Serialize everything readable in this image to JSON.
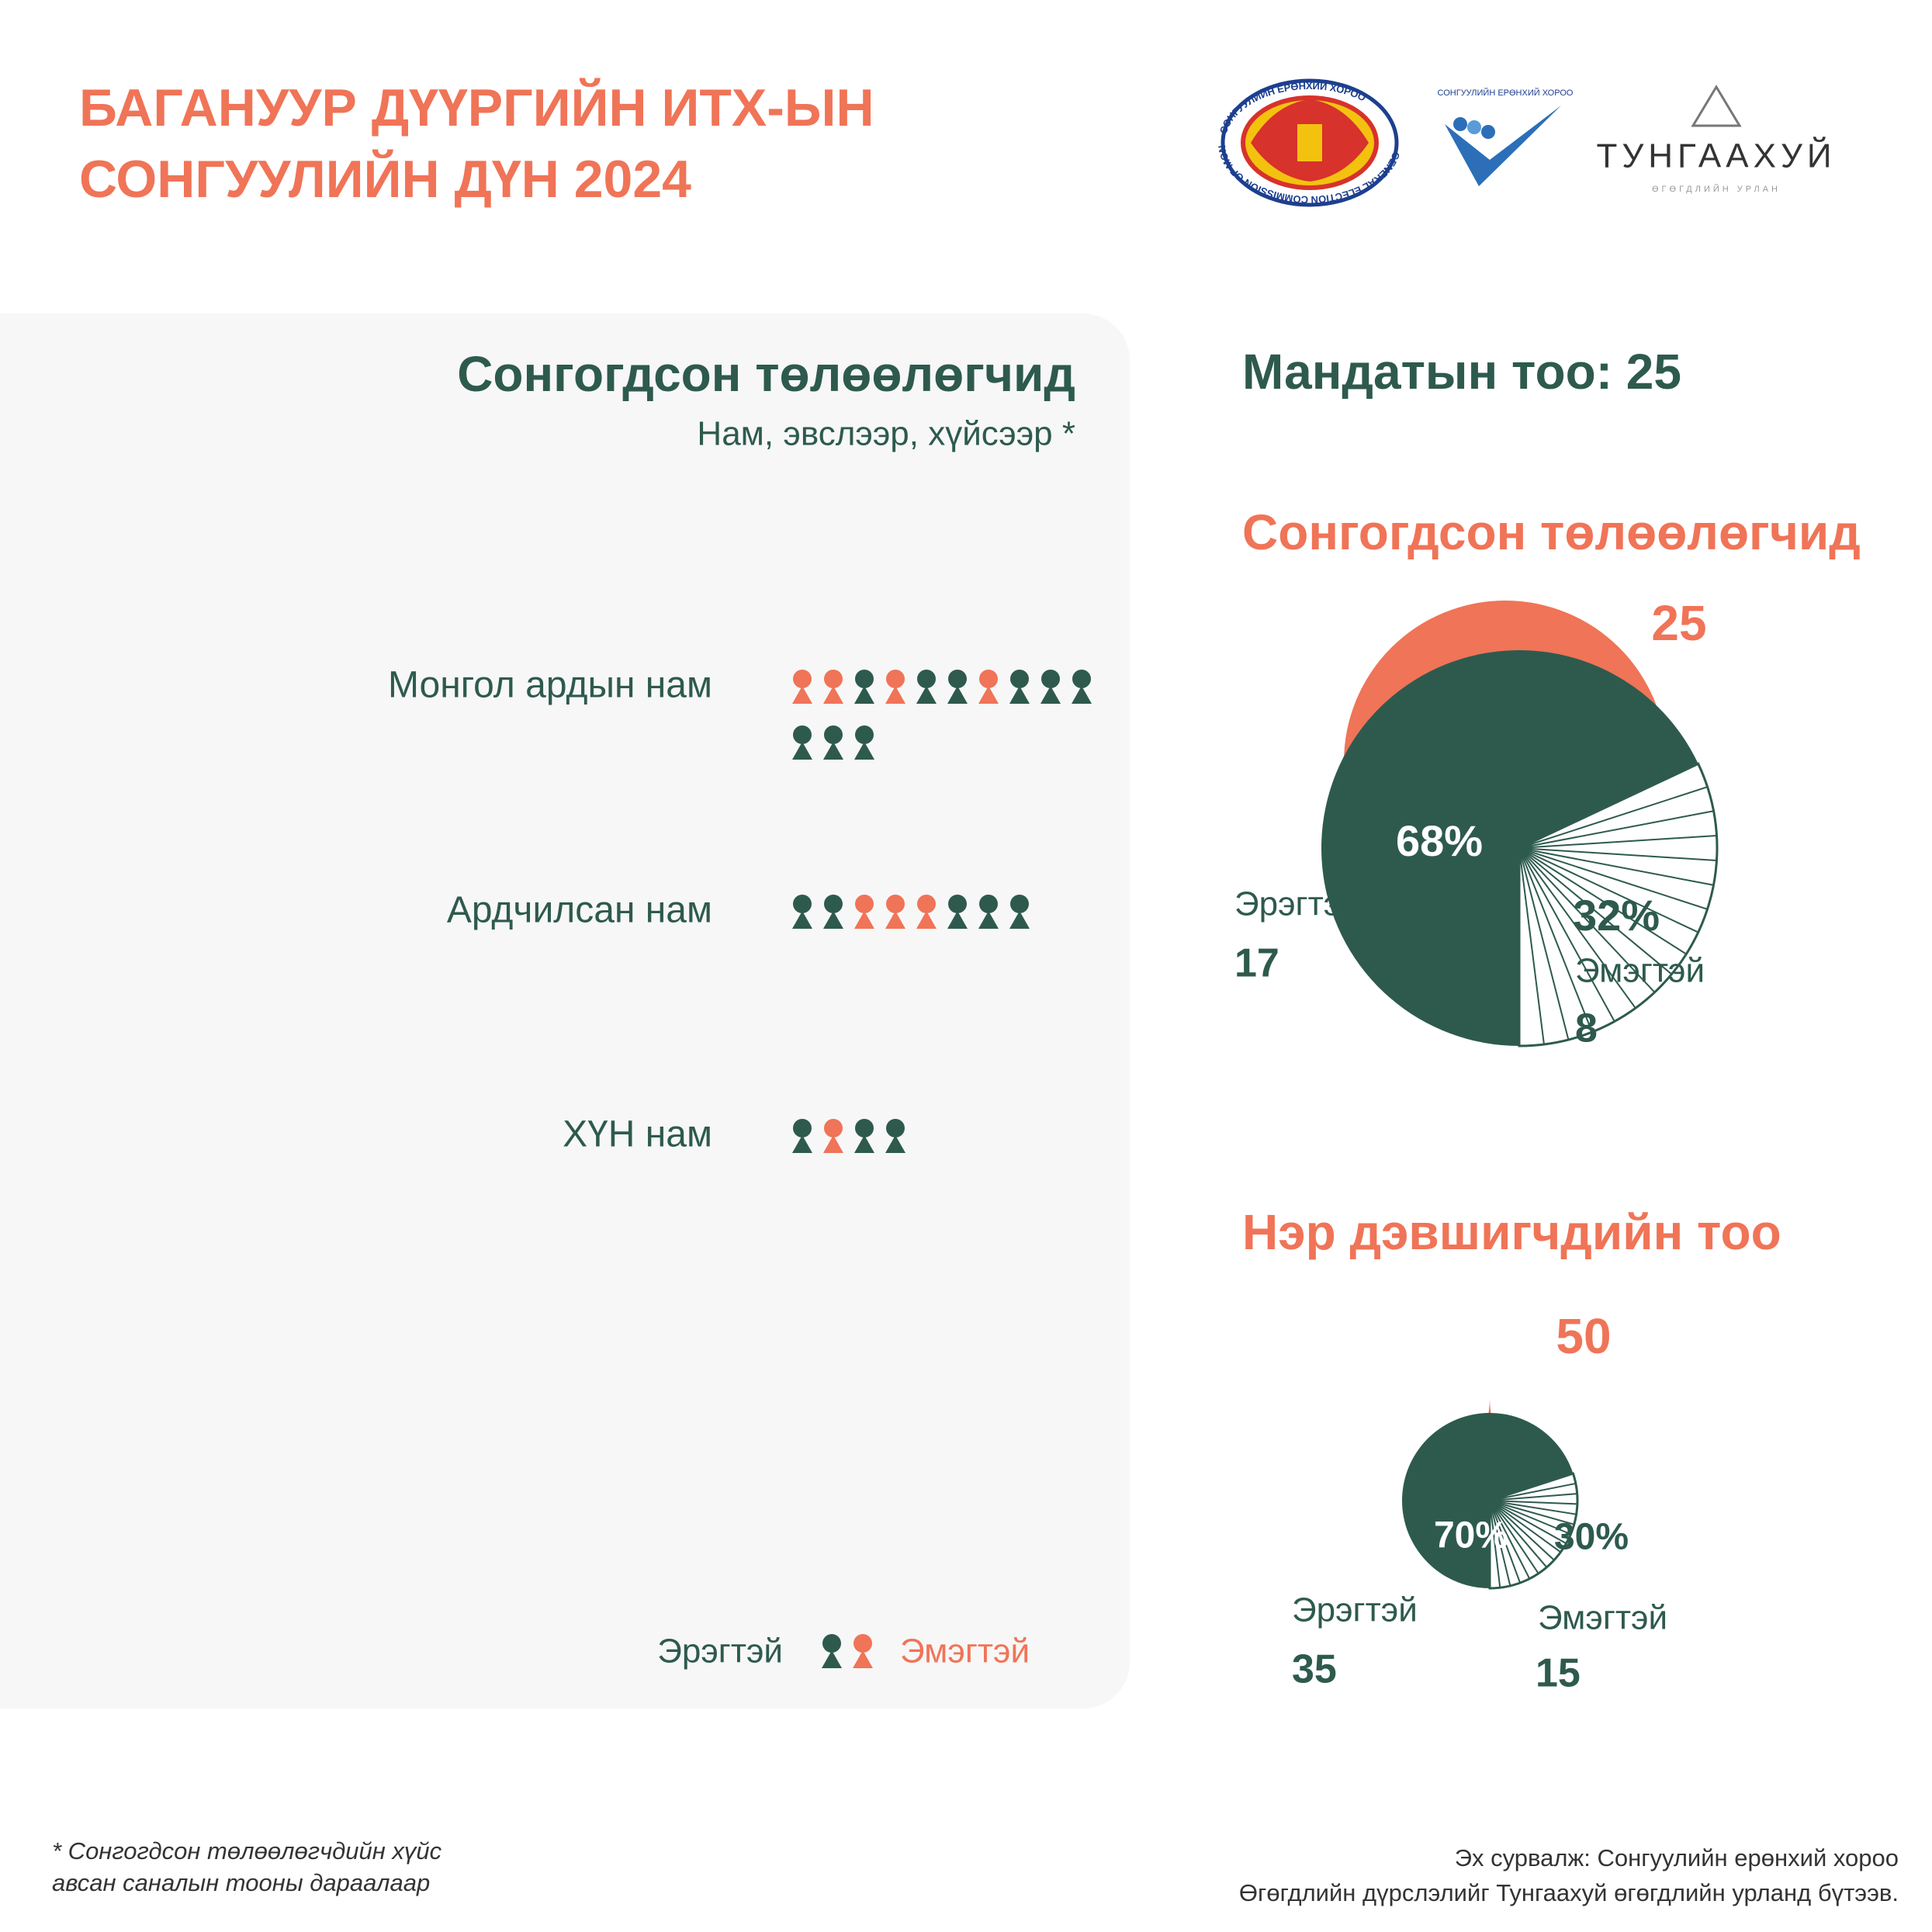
{
  "header": {
    "title_lines": [
      "БАГАНУУР ДҮҮРГИЙН ИТХ-ЫН",
      "СОНГУУЛИЙН ДҮН 2024"
    ]
  },
  "logos": {
    "gec_ring": "СОНГУУЛИЙН ЕРӨНХИЙ ХОРОО",
    "gec_ring_en": "GENERAL ELECTION COMMISSION OF MONGOLIA",
    "check_title": "СОНГУУЛИЙН ЕРӨНХИЙ ХОРОО",
    "brand": "ТУНГААХУЙ",
    "brand_sub": "ӨГӨГДЛИЙН УРЛАН"
  },
  "pictogram": {
    "title": "Сонгогдсон төлөөлөгчид",
    "subtitle": "Нам, эвслээр, хүйсээр *",
    "colors": {
      "male": "#2e5a4e",
      "female": "#f07457"
    },
    "parties": [
      {
        "name": "Монгол ардын нам",
        "members": [
          "female",
          "female",
          "male",
          "female",
          "male",
          "male",
          "female",
          "male",
          "male",
          "male",
          "male",
          "male",
          "male"
        ]
      },
      {
        "name": "Ардчилсан нам",
        "members": [
          "male",
          "male",
          "female",
          "female",
          "female",
          "male",
          "male",
          "male"
        ]
      },
      {
        "name": "ХҮН нам",
        "members": [
          "male",
          "female",
          "male",
          "male"
        ]
      }
    ],
    "legend": {
      "male": "Эрэгтэй",
      "female": "Эмэгтэй"
    }
  },
  "mandates": {
    "label": "Мандатын тоо:",
    "value": 25
  },
  "chart_data": [
    {
      "type": "pie",
      "title": "Сонгогдсон төлөөлөгчид",
      "total": 25,
      "categories": [
        "Эрэгтэй",
        "Эмэгтэй"
      ],
      "values": [
        68,
        32
      ],
      "value_labels": [
        "68%",
        "32%"
      ],
      "counts": [
        17,
        8
      ],
      "colors": [
        "#2e5a4e",
        "#ffffff"
      ],
      "accent": "#f07457"
    },
    {
      "type": "pie",
      "title": "Нэр дэвшигчдийн тоо",
      "total": 50,
      "categories": [
        "Эрэгтэй",
        "Эмэгтэй"
      ],
      "values": [
        70,
        30
      ],
      "value_labels": [
        "70%",
        "30%"
      ],
      "counts": [
        35,
        15
      ],
      "colors": [
        "#2e5a4e",
        "#ffffff"
      ],
      "accent": "#f07457"
    }
  ],
  "footnote": {
    "lines": [
      "* Сонгогдсон төлөөлөгчдийн хүйс",
      "авсан саналын тооны дараалаар"
    ]
  },
  "source": {
    "lines": [
      "Эх сурвалж: Сонгуулийн ерөнхий хороо",
      "Өгөгдлийн дүрслэлийг Тунгаахуй өгөгдлийн урланд бүтээв."
    ]
  }
}
